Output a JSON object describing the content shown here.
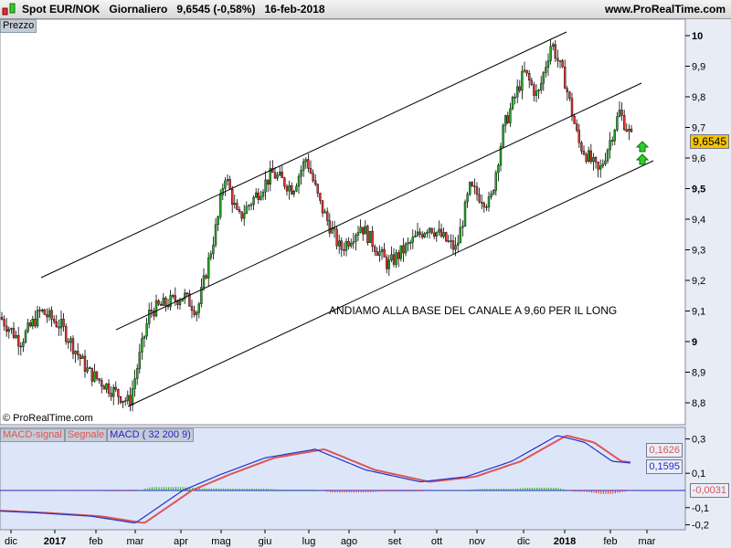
{
  "header": {
    "symbol": "Spot EUR/NOK",
    "period": "Giornaliero",
    "price": "9,6545 (-0,58%)",
    "date": "16-feb-2018",
    "site": "www.ProRealTime.com"
  },
  "panel_price": {
    "tab": "Prezzo",
    "copyright": "© ProRealTime.com",
    "annotation": "ANDIAMO ALLA BASE DEL CANALE A 9,60 PER IL LONG",
    "last_label": "9,6545"
  },
  "panel_macd": {
    "tabs": [
      "MACD-signal",
      "Segnale",
      "MACD ( 32 200 9)"
    ],
    "labels": [
      "0,1626",
      "0,1595",
      "-0,0031"
    ]
  },
  "colors": {
    "up": "#22aa22",
    "down": "#dd3333",
    "macd": "#2233cc",
    "signal": "#dd5555",
    "bg": "#ffffff",
    "macd_bg": "#dde6f8"
  },
  "chart_data": [
    {
      "type": "candlestick",
      "title": "Spot EUR/NOK Giornaliero",
      "ylim": [
        8.75,
        10.05
      ],
      "yticks": [
        "10",
        "9,9",
        "9,8",
        "9,7",
        "9,6",
        "9,5",
        "9,4",
        "9,3",
        "9,2",
        "9,1",
        "9",
        "8,9",
        "8,8"
      ],
      "xticks": [
        "dic",
        "2017",
        "feb",
        "mar",
        "apr",
        "mag",
        "giu",
        "lug",
        "ago",
        "set",
        "ott",
        "nov",
        "dic",
        "2018",
        "feb",
        "mar"
      ],
      "close_path": [
        [
          0,
          9.08
        ],
        [
          3,
          9.0
        ],
        [
          6,
          9.1
        ],
        [
          9,
          9.05
        ],
        [
          13,
          8.9
        ],
        [
          19,
          8.8
        ],
        [
          22,
          9.1
        ],
        [
          27,
          9.15
        ],
        [
          29,
          9.1
        ],
        [
          32,
          9.4
        ],
        [
          33,
          9.55
        ],
        [
          35,
          9.4
        ],
        [
          40,
          9.55
        ],
        [
          43,
          9.5
        ],
        [
          45,
          9.6
        ],
        [
          47,
          9.45
        ],
        [
          50,
          9.3
        ],
        [
          53,
          9.38
        ],
        [
          57,
          9.25
        ],
        [
          63,
          9.38
        ],
        [
          67,
          9.3
        ],
        [
          69,
          9.5
        ],
        [
          72,
          9.45
        ],
        [
          74,
          9.7
        ],
        [
          77,
          9.88
        ],
        [
          79,
          9.8
        ],
        [
          81,
          9.98
        ],
        [
          83,
          9.85
        ],
        [
          85,
          9.65
        ],
        [
          88,
          9.55
        ],
        [
          91,
          9.75
        ],
        [
          93,
          9.6545
        ]
      ]
    }
  ]
}
